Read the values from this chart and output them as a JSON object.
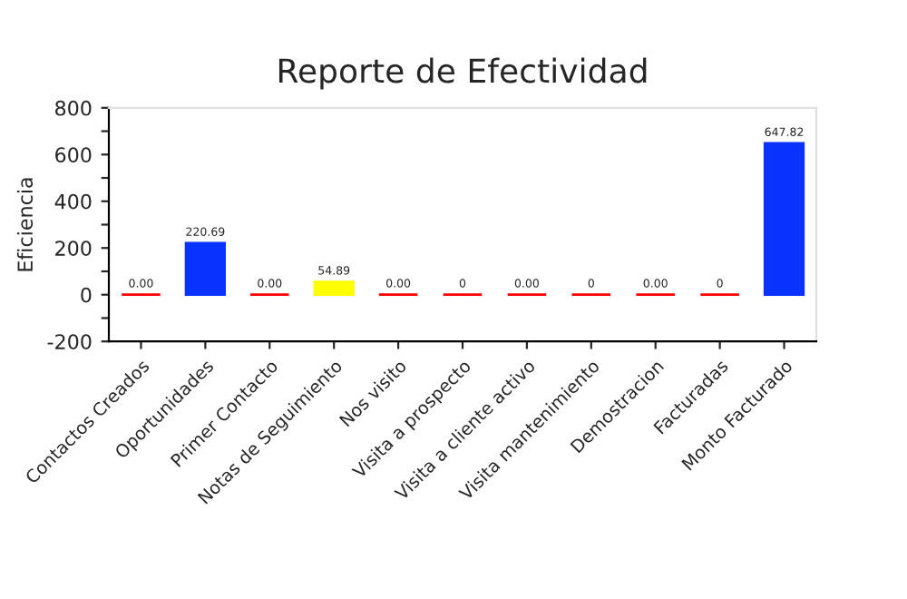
{
  "chart_data": {
    "type": "bar",
    "title": "Reporte de Efectividad",
    "ylabel": "Eficiencia",
    "categories": [
      "Contactos Creados",
      "Oportunidades",
      "Primer Contacto",
      "Notas de Seguimiento",
      "Nos visito",
      "Visita a prospecto",
      "Visita a cliente activo",
      "Visita mantenimiento",
      "Demostracion",
      "Facturadas",
      "Monto Facturado"
    ],
    "values": [
      0,
      220.69,
      0,
      54.89,
      0,
      0,
      0,
      0,
      0,
      0,
      647.82
    ],
    "colors": [
      "#ff0000",
      "#0a32ff",
      "#ff0000",
      "#ffff00",
      "#ff0000",
      "#ff0000",
      "#ff0000",
      "#ff0000",
      "#ff0000",
      "#ff0000",
      "#0a32ff"
    ],
    "value_labels": [
      "0.00",
      "220.69",
      "0.00",
      "54.89",
      "0.00",
      "0",
      "0.00",
      "0",
      "0.00",
      "0",
      "647.82"
    ],
    "ylim": [
      -200,
      800
    ],
    "yticks": [
      -200,
      {
        "value": -100,
        "label": null
      },
      0,
      {
        "value": 100,
        "label": null
      },
      200,
      {
        "value": 300,
        "label": null
      },
      400,
      {
        "value": 500,
        "label": null
      },
      600,
      {
        "value": 700,
        "label": null
      },
      800
    ],
    "grid": false,
    "legend": false
  }
}
